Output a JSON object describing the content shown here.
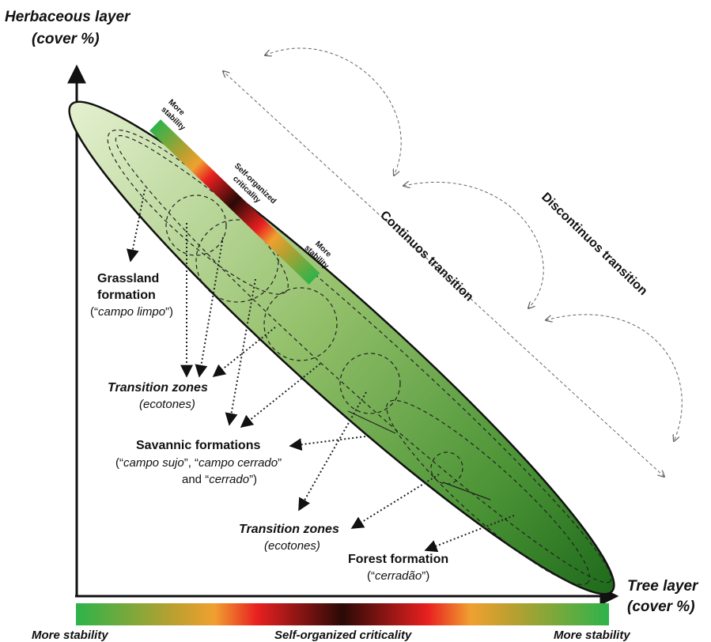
{
  "axes": {
    "y_label_line1": "Herbaceous layer",
    "y_label_line2": "(cover  %)",
    "x_label_line1": "Tree layer",
    "x_label_line2": "(cover  %)"
  },
  "labels": {
    "grassland_title_line1": "Grassland",
    "grassland_title_line2": "formation",
    "grassland_sub_open": "(“",
    "grassland_sub_name": "campo limpo",
    "grassland_sub_close": "”)",
    "transition1_title": "Transition zones",
    "transition1_sub": "(ecotones)",
    "savannic_title": "Savannic formations",
    "savannic_sub_p1": "(“",
    "savannic_sub_p2": "campo sujo",
    "savannic_sub_p3": "”, “",
    "savannic_sub_p4": "campo cerrado",
    "savannic_sub_p5": "”",
    "savannic_sub_p6": "and “",
    "savannic_sub_p7": "cerrado",
    "savannic_sub_p8": "”)",
    "transition2_title": "Transition zones",
    "transition2_sub": "(ecotones)",
    "forest_title": "Forest formation",
    "forest_sub_open": "(“",
    "forest_sub_name": "cerradão",
    "forest_sub_close": "”)"
  },
  "diagonal_bar": {
    "left_line1": "More",
    "left_line2": "stability",
    "middle_line1": "Self-organized",
    "middle_line2": "criticality",
    "right_line1": "More",
    "right_line2": "stability"
  },
  "transitions": {
    "continuous": "Continuos transition",
    "discontinuous": "Discontinuos transition"
  },
  "bottom_bar": {
    "left": "More stability",
    "middle": "Self-organized criticality",
    "right": "More stability"
  },
  "colors": {
    "stability_green": "#2db34a",
    "criticality_dark": "#2a0a06",
    "criticality_red": "#e82020",
    "transition_orange": "#f0a030",
    "ellipse_light": "#e4f0cf",
    "ellipse_dark": "#1f6b1c"
  }
}
